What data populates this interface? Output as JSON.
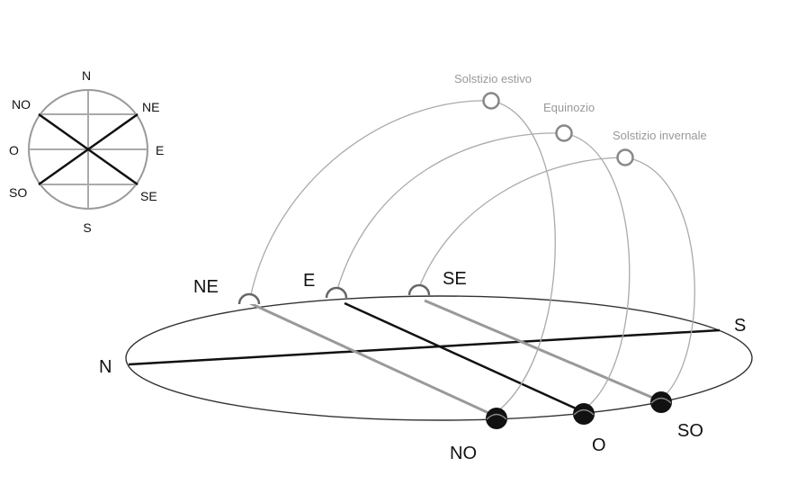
{
  "compass": {
    "n": "N",
    "ne": "NE",
    "e": "E",
    "se": "SE",
    "s": "S",
    "so": "SO",
    "o": "O",
    "no": "NO"
  },
  "horizon": {
    "north": "N",
    "south": "S",
    "sunrise_ne": "NE",
    "sunrise_e": "E",
    "sunrise_se": "SE",
    "sunset_no": "NO",
    "sunset_o": "O",
    "sunset_so": "SO"
  },
  "arcs": {
    "summer": "Solstizio estivo",
    "equinox": "Equinozio",
    "winter": "Solstizio invernale"
  },
  "colors": {
    "line_dark": "#111111",
    "line_grey": "#999999",
    "arc_grey": "#aaaaaa",
    "text_grey": "#999999",
    "text_dark": "#111111"
  }
}
